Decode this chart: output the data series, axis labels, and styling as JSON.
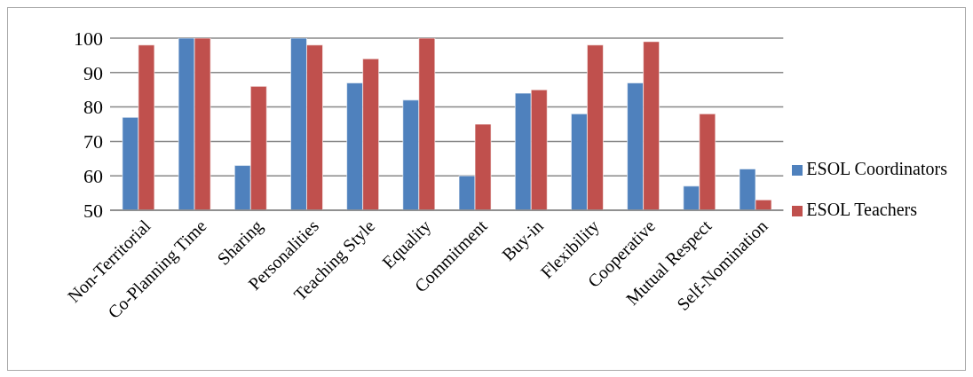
{
  "chart_data": {
    "type": "bar",
    "categories": [
      "Non-Territorial",
      "Co-Planning Time",
      "Sharing",
      "Personalities",
      "Teaching Style",
      "Equality",
      "Commitment",
      "Buy-in",
      "Flexibility",
      "Cooperative",
      "Mutual Respect",
      "Self-Nomination"
    ],
    "series": [
      {
        "name": "ESOL Coordinators",
        "color": "#4f81bd",
        "values": [
          77,
          100,
          63,
          100,
          87,
          82,
          60,
          84,
          78,
          87,
          57,
          62
        ]
      },
      {
        "name": "ESOL Teachers",
        "color": "#c0504d",
        "values": [
          98,
          100,
          86,
          98,
          94,
          100,
          75,
          85,
          98,
          99,
          78,
          53
        ]
      }
    ],
    "ylim": [
      50,
      100
    ],
    "yticks": [
      50,
      60,
      70,
      80,
      90,
      100
    ],
    "grid": "y",
    "legend": "right"
  }
}
